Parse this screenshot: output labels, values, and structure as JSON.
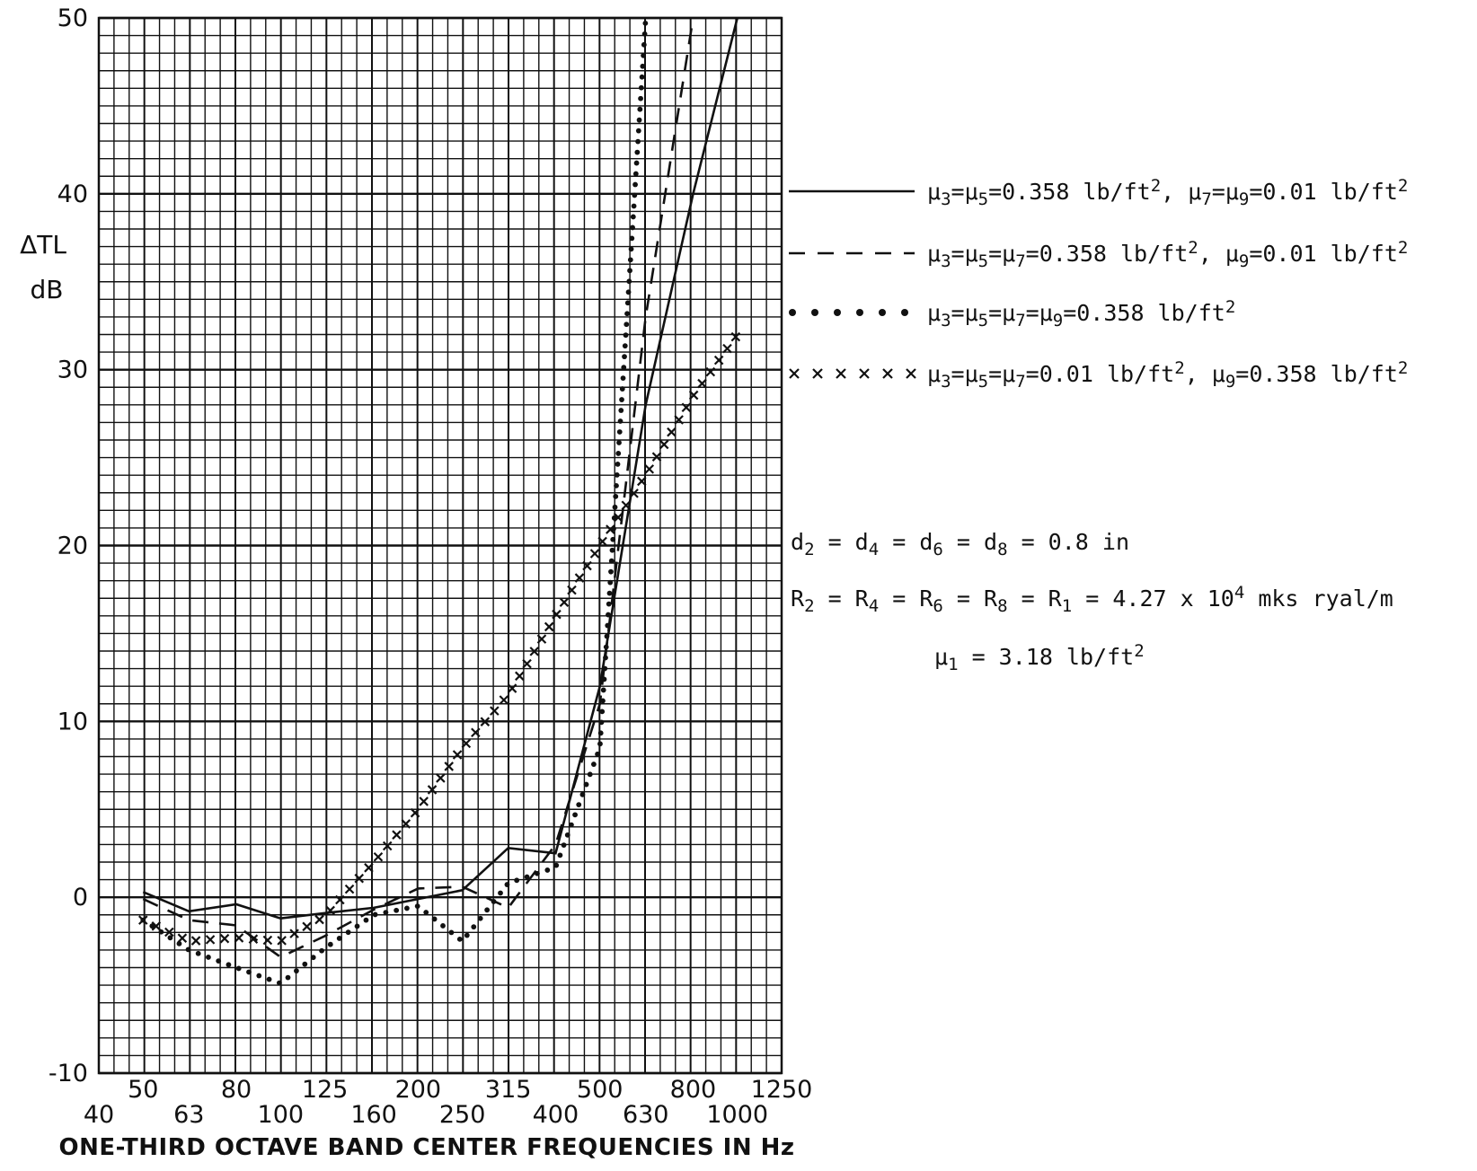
{
  "chart_data": {
    "type": "line",
    "xscale": "log",
    "title": "",
    "xlabel": "ONE-THIRD OCTAVE BAND CENTER FREQUENCIES IN Hz",
    "ylabel": "ΔTL",
    "yunit": "dB",
    "ylim": [
      -10,
      50
    ],
    "yticks": [
      "-10",
      "0",
      "10",
      "20",
      "30",
      "40",
      "50"
    ],
    "xticks_upper": [
      "50",
      "80",
      "125",
      "200",
      "315",
      "500",
      "800",
      "1250"
    ],
    "xticks_lower": [
      "40",
      "63",
      "100",
      "160",
      "250",
      "400",
      "630",
      "1000"
    ],
    "grid": true,
    "legend_position": "right",
    "series": [
      {
        "label": [
          [
            "μ",
            ""
          ],
          [
            "3",
            "sub"
          ],
          [
            "=μ",
            ""
          ],
          [
            "5",
            "sub"
          ],
          [
            "=0.358 lb/ft",
            ""
          ],
          [
            "2",
            "sup"
          ],
          [
            ", μ",
            ""
          ],
          [
            "7",
            "sub"
          ],
          [
            "=μ",
            ""
          ],
          [
            "9",
            "sub"
          ],
          [
            "=0.01 lb/ft",
            ""
          ],
          [
            "2",
            "sup"
          ]
        ],
        "style": "solid",
        "x": [
          50,
          63,
          80,
          100,
          125,
          160,
          200,
          250,
          315,
          400,
          500,
          630,
          800,
          1000
        ],
        "y": [
          0.3,
          -0.8,
          -0.4,
          -1.2,
          -0.9,
          -0.6,
          -0.1,
          0.4,
          2.8,
          2.5,
          12,
          28,
          40,
          50
        ]
      },
      {
        "label": [
          [
            "μ",
            ""
          ],
          [
            "3",
            "sub"
          ],
          [
            "=μ",
            ""
          ],
          [
            "5",
            "sub"
          ],
          [
            "=μ",
            ""
          ],
          [
            "7",
            "sub"
          ],
          [
            "=0.358 lb/ft",
            ""
          ],
          [
            "2",
            "sup"
          ],
          [
            ", μ",
            ""
          ],
          [
            "9",
            "sub"
          ],
          [
            "=0.01 lb/ft",
            ""
          ],
          [
            "2",
            "sup"
          ]
        ],
        "style": "dashed",
        "x": [
          50,
          63,
          80,
          100,
          125,
          160,
          200,
          250,
          315,
          400,
          500,
          630,
          800
        ],
        "y": [
          -0.1,
          -1.3,
          -1.6,
          -3.4,
          -2.2,
          -0.7,
          0.5,
          0.6,
          -0.6,
          3.0,
          11,
          33,
          50
        ]
      },
      {
        "label": [
          [
            "μ",
            ""
          ],
          [
            "3",
            "sub"
          ],
          [
            "=μ",
            ""
          ],
          [
            "5",
            "sub"
          ],
          [
            "=μ",
            ""
          ],
          [
            "7",
            "sub"
          ],
          [
            "=μ",
            ""
          ],
          [
            "9",
            "sub"
          ],
          [
            "=0.358 lb/ft",
            ""
          ],
          [
            "2",
            "sup"
          ]
        ],
        "style": "dotted",
        "x": [
          50,
          63,
          80,
          100,
          125,
          160,
          200,
          250,
          315,
          400,
          500,
          630
        ],
        "y": [
          -1.3,
          -3.0,
          -4.0,
          -4.9,
          -2.9,
          -1.0,
          -0.5,
          -2.5,
          0.8,
          1.7,
          8.5,
          50
        ]
      },
      {
        "label": [
          [
            "μ",
            ""
          ],
          [
            "3",
            "sub"
          ],
          [
            "=μ",
            ""
          ],
          [
            "5",
            "sub"
          ],
          [
            "=μ",
            ""
          ],
          [
            "7",
            "sub"
          ],
          [
            "=0.01 lb/ft",
            ""
          ],
          [
            "2",
            "sup"
          ],
          [
            ", μ",
            ""
          ],
          [
            "9",
            "sub"
          ],
          [
            "=0.358 lb/ft",
            ""
          ],
          [
            "2",
            "sup"
          ]
        ],
        "style": "cross",
        "x": [
          50,
          63,
          80,
          100,
          125,
          160,
          200,
          250,
          315,
          400,
          500,
          630,
          800,
          1000
        ],
        "y": [
          -1.3,
          -2.5,
          -2.3,
          -2.5,
          -1.1,
          2.0,
          5.0,
          8.5,
          11.5,
          16,
          20,
          24,
          28.5,
          32
        ]
      }
    ],
    "annotations": [
      [
        [
          "d",
          ""
        ],
        [
          "2",
          "sub"
        ],
        [
          " = d",
          ""
        ],
        [
          "4",
          "sub"
        ],
        [
          " = d",
          ""
        ],
        [
          "6",
          "sub"
        ],
        [
          " = d",
          ""
        ],
        [
          "8",
          "sub"
        ],
        [
          " = 0.8 in",
          ""
        ]
      ],
      [
        [
          "R",
          ""
        ],
        [
          "2",
          "sub"
        ],
        [
          " = R",
          ""
        ],
        [
          "4",
          "sub"
        ],
        [
          " = R",
          ""
        ],
        [
          "6",
          "sub"
        ],
        [
          " = R",
          ""
        ],
        [
          "8",
          "sub"
        ],
        [
          " = R",
          ""
        ],
        [
          "1",
          "sub"
        ],
        [
          " = 4.27 x 10",
          ""
        ],
        [
          "4",
          "sup"
        ],
        [
          " mks ryal/m",
          ""
        ]
      ],
      [
        [
          "μ",
          ""
        ],
        [
          "1",
          "sub"
        ],
        [
          " = 3.18 lb/ft",
          ""
        ],
        [
          "2",
          "sup"
        ]
      ]
    ]
  }
}
